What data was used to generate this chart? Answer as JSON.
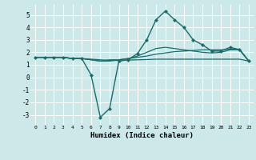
{
  "xlabel": "Humidex (Indice chaleur)",
  "bg_color": "#cce8e8",
  "grid_color": "#ffffff",
  "line_color": "#1a6b6b",
  "xlim": [
    -0.5,
    23.5
  ],
  "ylim": [
    -3.8,
    5.8
  ],
  "yticks": [
    -3,
    -2,
    -1,
    0,
    1,
    2,
    3,
    4,
    5
  ],
  "xticks": [
    0,
    1,
    2,
    3,
    4,
    5,
    6,
    7,
    8,
    9,
    10,
    11,
    12,
    13,
    14,
    15,
    16,
    17,
    18,
    19,
    20,
    21,
    22,
    23
  ],
  "series": [
    {
      "x": [
        0,
        1,
        2,
        3,
        4,
        5,
        6,
        7,
        8,
        9,
        10,
        11,
        12,
        13,
        14,
        15,
        16,
        17,
        18,
        19,
        20,
        21,
        22,
        23
      ],
      "y": [
        1.6,
        1.6,
        1.6,
        1.6,
        1.5,
        1.5,
        0.2,
        -3.2,
        -2.5,
        1.3,
        1.4,
        1.9,
        3.0,
        4.6,
        5.3,
        4.6,
        4.0,
        3.0,
        2.6,
        2.1,
        2.1,
        2.4,
        2.2,
        1.3
      ],
      "marker": "D",
      "markersize": 2.0,
      "linewidth": 1.0,
      "has_marker": true
    },
    {
      "x": [
        0,
        1,
        2,
        3,
        4,
        5,
        6,
        7,
        8,
        9,
        10,
        11,
        12,
        13,
        14,
        15,
        16,
        17,
        18,
        19,
        20,
        21,
        22,
        23
      ],
      "y": [
        1.6,
        1.6,
        1.6,
        1.6,
        1.5,
        1.5,
        1.4,
        1.3,
        1.4,
        1.4,
        1.5,
        1.6,
        1.7,
        1.85,
        1.95,
        2.05,
        2.1,
        2.15,
        2.2,
        2.2,
        2.2,
        2.25,
        2.25,
        1.3
      ],
      "marker": null,
      "markersize": 0,
      "linewidth": 0.9,
      "has_marker": false
    },
    {
      "x": [
        0,
        1,
        2,
        3,
        4,
        5,
        6,
        7,
        8,
        9,
        10,
        11,
        12,
        13,
        14,
        15,
        16,
        17,
        18,
        19,
        20,
        21,
        22,
        23
      ],
      "y": [
        1.6,
        1.6,
        1.6,
        1.6,
        1.5,
        1.5,
        1.4,
        1.3,
        1.3,
        1.4,
        1.5,
        1.7,
        2.0,
        2.3,
        2.4,
        2.3,
        2.2,
        2.1,
        2.0,
        1.95,
        2.0,
        2.2,
        2.2,
        1.3
      ],
      "marker": null,
      "markersize": 0,
      "linewidth": 0.9,
      "has_marker": false
    },
    {
      "x": [
        0,
        1,
        2,
        3,
        4,
        5,
        6,
        7,
        8,
        9,
        10,
        11,
        12,
        13,
        14,
        15,
        16,
        17,
        18,
        19,
        20,
        21,
        22,
        23
      ],
      "y": [
        1.6,
        1.6,
        1.6,
        1.6,
        1.5,
        1.5,
        1.45,
        1.4,
        1.35,
        1.35,
        1.38,
        1.4,
        1.42,
        1.45,
        1.45,
        1.45,
        1.45,
        1.45,
        1.45,
        1.45,
        1.45,
        1.45,
        1.45,
        1.3
      ],
      "marker": null,
      "markersize": 0,
      "linewidth": 0.9,
      "has_marker": false
    }
  ]
}
